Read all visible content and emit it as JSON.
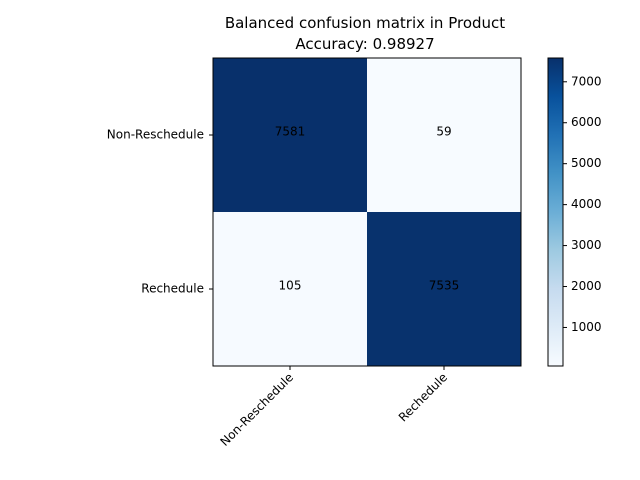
{
  "chart_data": {
    "type": "heatmap",
    "title": "Balanced confusion matrix in Product",
    "subtitle": "Accuracy: 0.98927",
    "row_labels": [
      "Non-Reschedule",
      "Rechedule"
    ],
    "col_labels": [
      "Non-Reschedule",
      "Rechedule"
    ],
    "values": [
      [
        7581,
        59
      ],
      [
        105,
        7535
      ]
    ],
    "colormap": "Blues",
    "color_low": "#f7fbff",
    "color_high": "#08306b",
    "colorbar": {
      "range": [
        59,
        7581
      ],
      "ticks": [
        1000,
        2000,
        3000,
        4000,
        5000,
        6000,
        7000
      ],
      "tick_labels": [
        "1000",
        "2000",
        "3000",
        "4000",
        "5000",
        "6000",
        "7000"
      ]
    },
    "xlabel": "",
    "ylabel": "",
    "grid": false
  }
}
